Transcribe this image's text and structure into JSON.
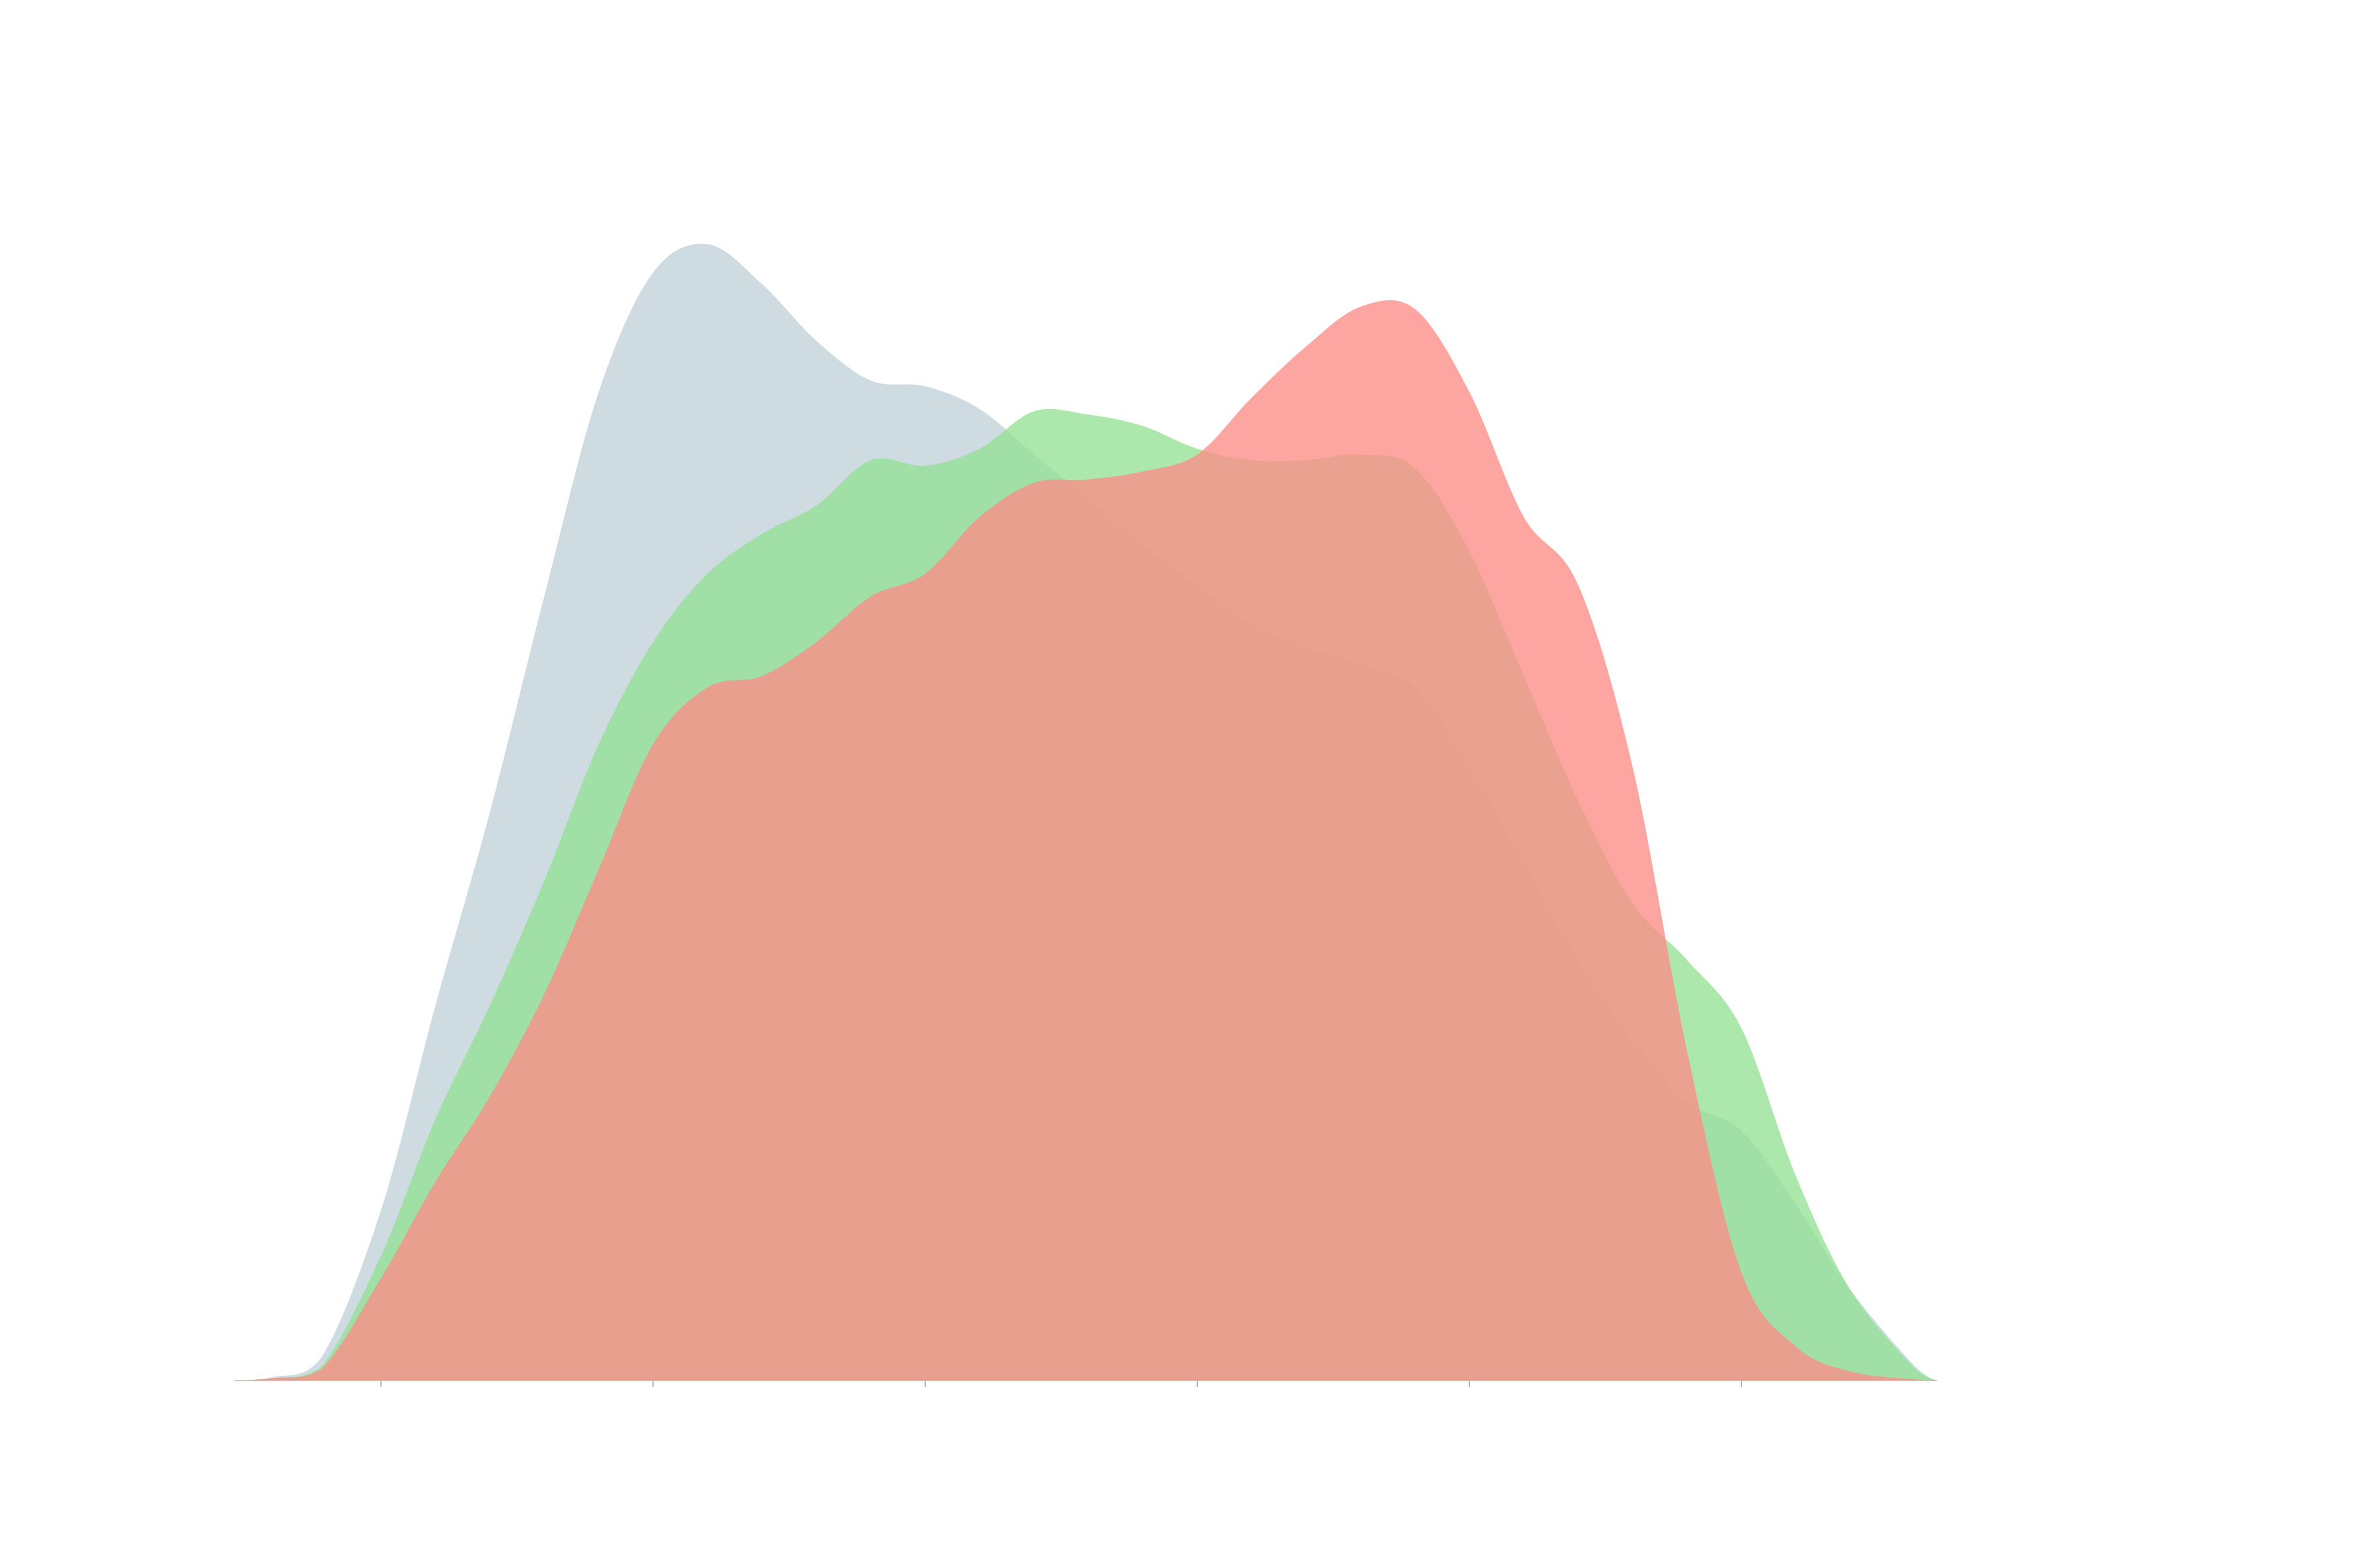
{
  "chart_data": {
    "type": "area",
    "title": "",
    "xlabel": "",
    "ylabel": "",
    "xlim": [
      0,
      31
    ],
    "ylim": [
      0,
      1.0
    ],
    "x_ticks": [
      0,
      5,
      10,
      15,
      20,
      25
    ],
    "x_tick_labels": [],
    "grid": false,
    "legend": "none",
    "axis_color": "#c9b7ad",
    "x": [
      -2.7,
      -2,
      -1.1,
      0,
      1,
      2,
      3,
      4,
      5,
      6,
      7,
      8,
      9,
      10,
      11,
      12,
      13,
      14,
      15,
      16,
      17,
      18,
      19,
      20,
      21,
      22,
      23,
      24,
      25,
      26,
      27,
      28.2,
      28.6
    ],
    "series": [
      {
        "color": "#c5d6dc",
        "opacity": 0.85,
        "values": [
          0.0,
          0.003,
          0.02,
          0.15,
          0.33,
          0.5,
          0.69,
          0.87,
          0.975,
          1.0,
          0.965,
          0.915,
          0.88,
          0.875,
          0.855,
          0.815,
          0.775,
          0.735,
          0.7,
          0.665,
          0.645,
          0.63,
          0.61,
          0.54,
          0.455,
          0.37,
          0.3,
          0.245,
          0.22,
          0.155,
          0.08,
          0.012,
          0.0
        ]
      },
      {
        "color": "#90e090",
        "opacity": 0.75,
        "values": [
          0.0,
          0.002,
          0.012,
          0.11,
          0.23,
          0.33,
          0.44,
          0.56,
          0.65,
          0.71,
          0.745,
          0.77,
          0.81,
          0.805,
          0.82,
          0.853,
          0.85,
          0.84,
          0.82,
          0.81,
          0.81,
          0.815,
          0.803,
          0.73,
          0.62,
          0.51,
          0.42,
          0.37,
          0.31,
          0.18,
          0.08,
          0.01,
          0.0
        ]
      },
      {
        "color": "#fc8d86",
        "opacity": 0.78,
        "values": [
          0.0,
          0.002,
          0.01,
          0.09,
          0.175,
          0.25,
          0.34,
          0.45,
          0.56,
          0.61,
          0.62,
          0.65,
          0.69,
          0.71,
          0.76,
          0.79,
          0.793,
          0.8,
          0.815,
          0.865,
          0.91,
          0.945,
          0.943,
          0.87,
          0.76,
          0.7,
          0.54,
          0.29,
          0.095,
          0.03,
          0.008,
          0.001,
          0.0
        ]
      }
    ]
  }
}
